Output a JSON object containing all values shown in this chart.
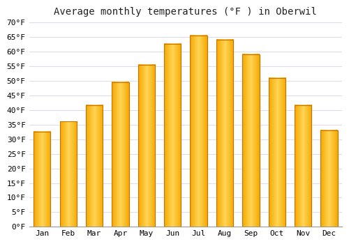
{
  "title": "Average monthly temperatures (°F ) in Oberwil",
  "months": [
    "Jan",
    "Feb",
    "Mar",
    "Apr",
    "May",
    "Jun",
    "Jul",
    "Aug",
    "Sep",
    "Oct",
    "Nov",
    "Dec"
  ],
  "values": [
    32.5,
    36.0,
    41.5,
    49.5,
    55.5,
    62.5,
    65.5,
    64.0,
    59.0,
    51.0,
    41.5,
    33.0
  ],
  "bar_color_left": "#F5A800",
  "bar_color_center": "#FFD555",
  "bar_color_right": "#F5A800",
  "bar_edge_color": "#C87000",
  "ylim": [
    0,
    70
  ],
  "yticks": [
    0,
    5,
    10,
    15,
    20,
    25,
    30,
    35,
    40,
    45,
    50,
    55,
    60,
    65,
    70
  ],
  "background_color": "#FFFFFF",
  "grid_color": "#DDDDEE",
  "title_fontsize": 10,
  "tick_fontsize": 8,
  "font_family": "monospace",
  "bar_width": 0.65,
  "gradient_steps": 100
}
